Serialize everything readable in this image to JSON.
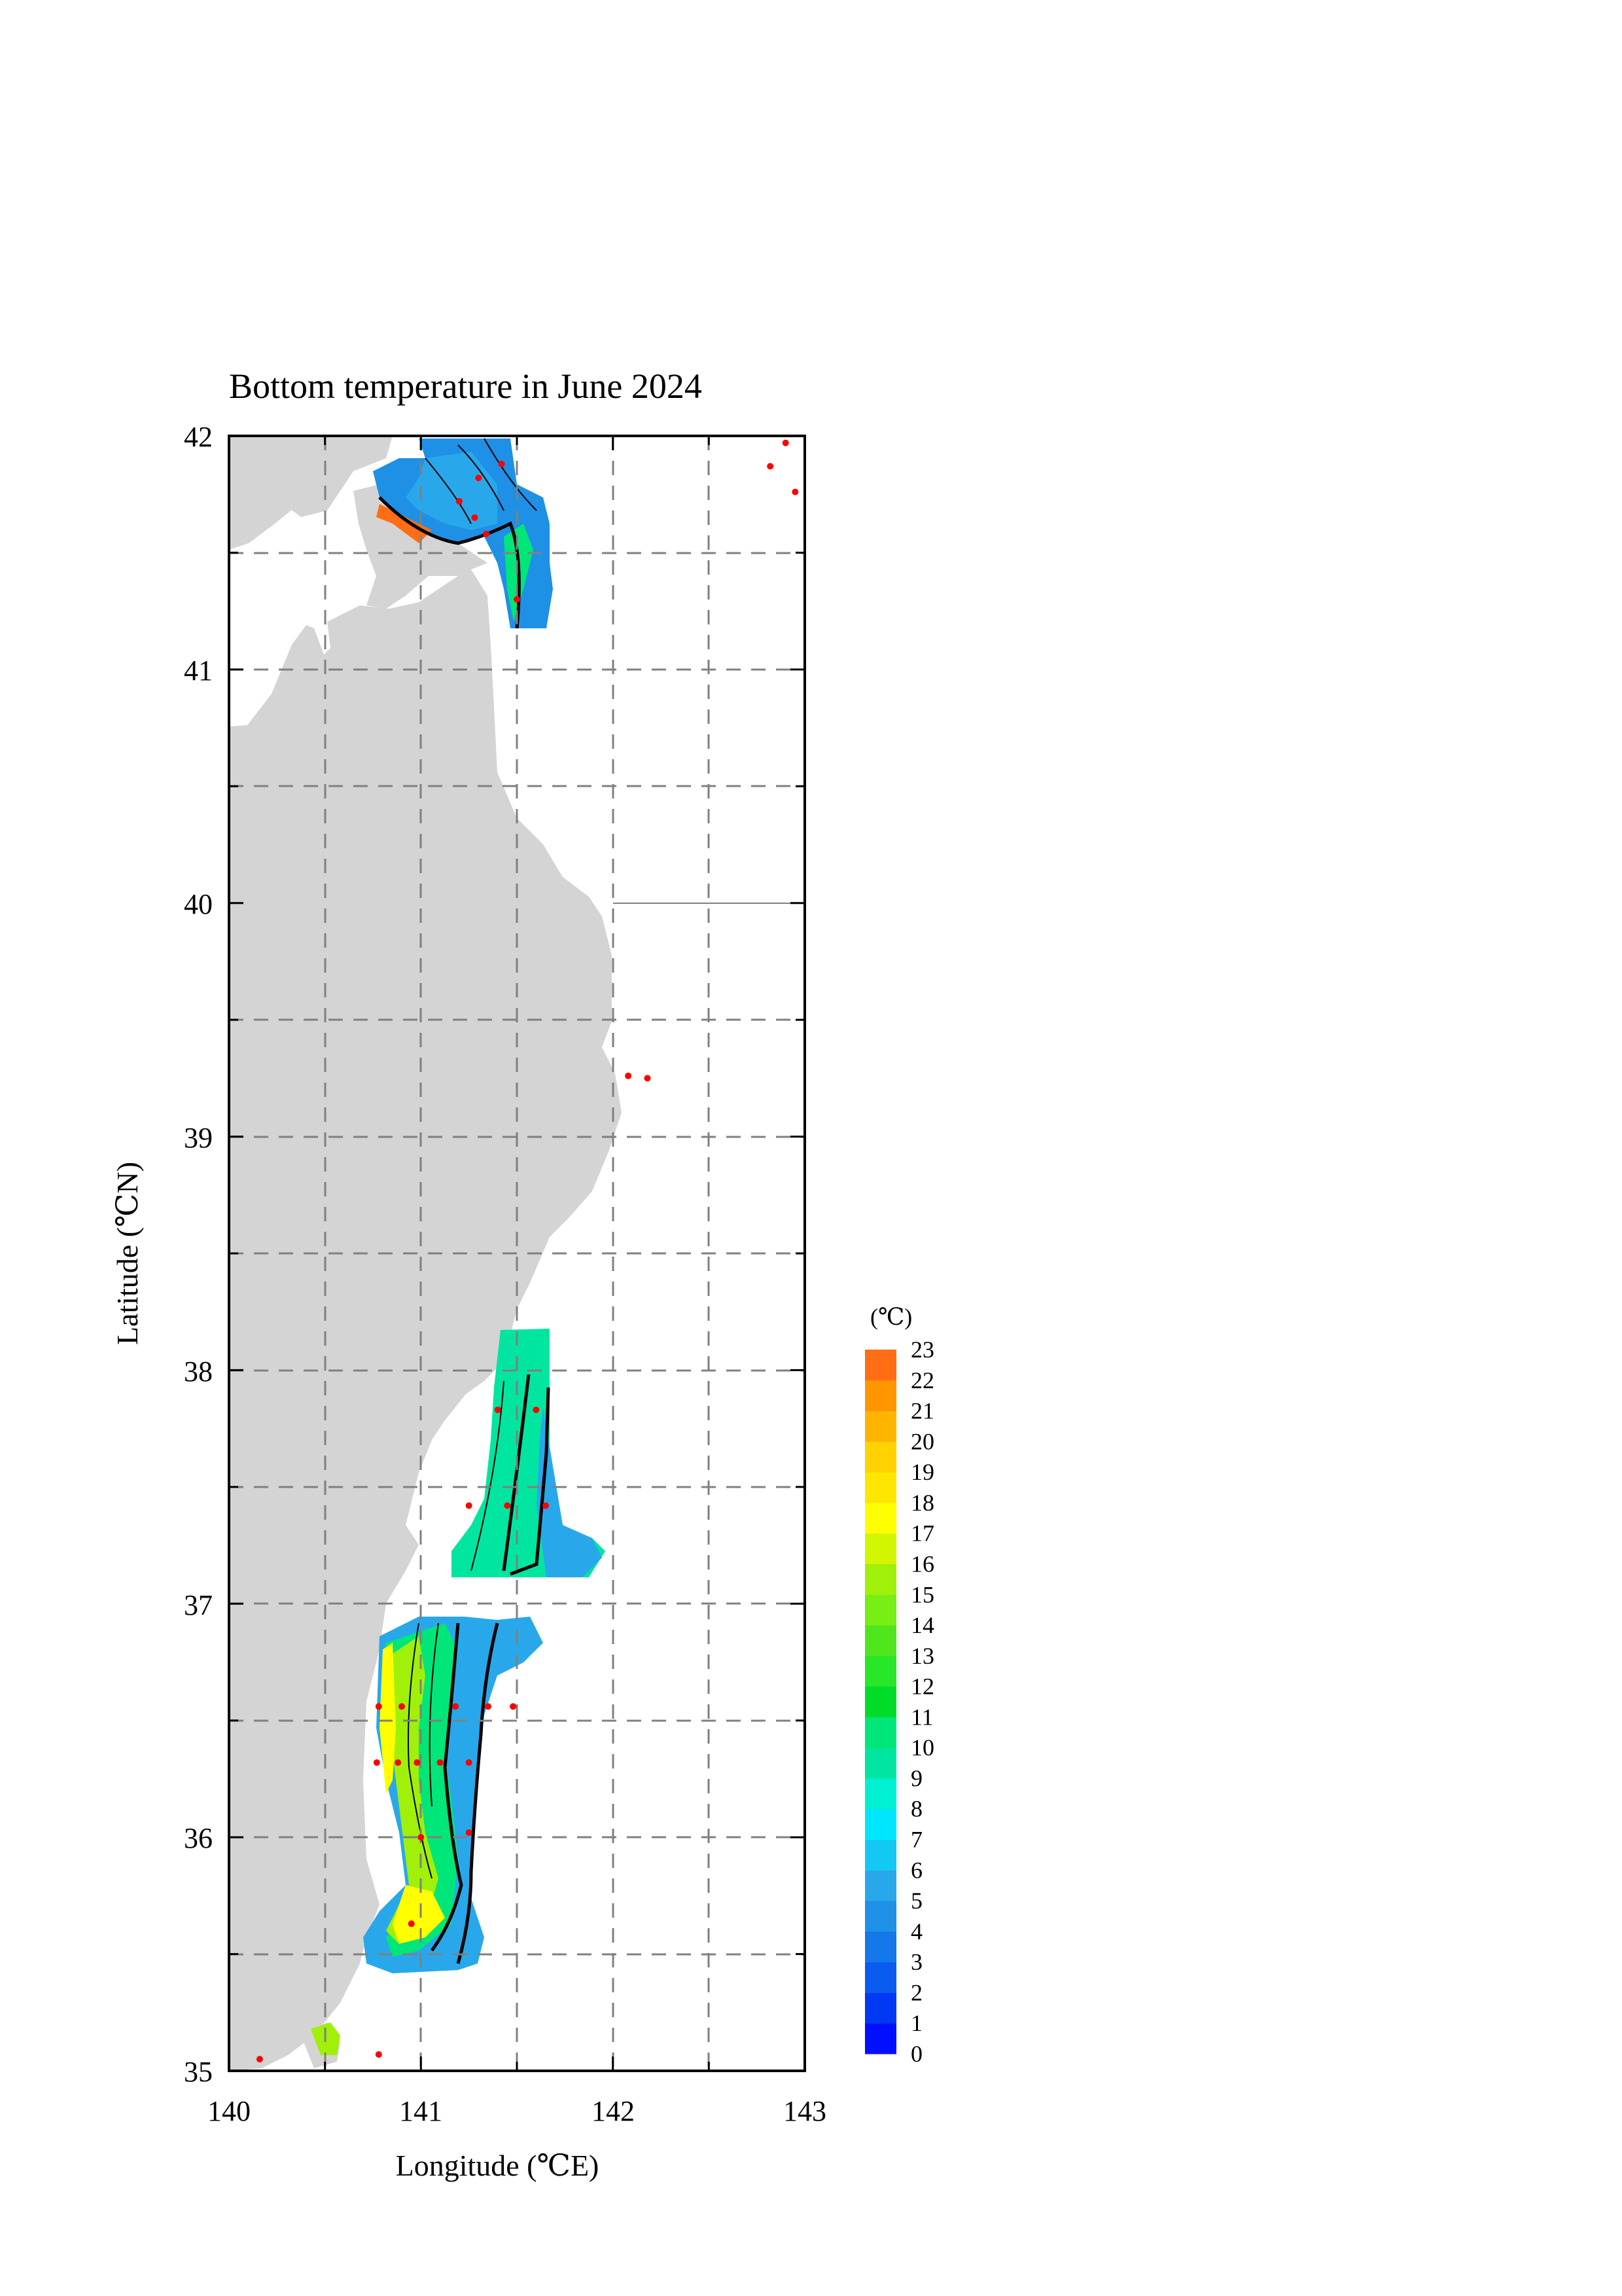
{
  "title": "Bottom temperature in June 2024",
  "x_axis": {
    "label": "Longitude (℃E)",
    "ticks": [
      "140",
      "141",
      "142",
      "143"
    ],
    "range": [
      140,
      143
    ]
  },
  "y_axis": {
    "label": "Latitude (℃N)",
    "ticks": [
      "35",
      "36",
      "37",
      "38",
      "39",
      "40",
      "41",
      "42"
    ],
    "range": [
      35,
      42
    ]
  },
  "colorbar": {
    "unit": "(℃)",
    "labels": [
      "0",
      "1",
      "2",
      "3",
      "4",
      "5",
      "6",
      "7",
      "8",
      "9",
      "10",
      "11",
      "12",
      "13",
      "14",
      "15",
      "16",
      "17",
      "18",
      "19",
      "20",
      "21",
      "22",
      "23"
    ],
    "colors": [
      "#0010ff",
      "#0038f4",
      "#0a5cf0",
      "#1478ea",
      "#1e90e6",
      "#28a8ea",
      "#14c8f4",
      "#00e6ff",
      "#00f0d2",
      "#00e6a0",
      "#00e678",
      "#00dc28",
      "#28e628",
      "#50e61e",
      "#78ee14",
      "#a0f00a",
      "#d2f500",
      "#ffff00",
      "#ffe600",
      "#ffd200",
      "#ffb400",
      "#ff9600",
      "#ff6e14"
    ]
  },
  "colors": {
    "land": "#d4d4d4",
    "grid": "#808080",
    "station": "#ff0000"
  },
  "stations": [
    {
      "lon": 141.3,
      "lat": 41.82
    },
    {
      "lon": 141.42,
      "lat": 41.88
    },
    {
      "lon": 141.2,
      "lat": 41.72
    },
    {
      "lon": 141.28,
      "lat": 41.65
    },
    {
      "lon": 141.34,
      "lat": 41.58
    },
    {
      "lon": 141.5,
      "lat": 41.3
    },
    {
      "lon": 142.82,
      "lat": 41.87
    },
    {
      "lon": 142.9,
      "lat": 41.97
    },
    {
      "lon": 142.95,
      "lat": 41.76
    },
    {
      "lon": 142.08,
      "lat": 39.26
    },
    {
      "lon": 142.18,
      "lat": 39.25
    },
    {
      "lon": 141.4,
      "lat": 37.83
    },
    {
      "lon": 141.6,
      "lat": 37.83
    },
    {
      "lon": 141.25,
      "lat": 37.42
    },
    {
      "lon": 141.45,
      "lat": 37.42
    },
    {
      "lon": 141.65,
      "lat": 37.42
    },
    {
      "lon": 140.78,
      "lat": 36.56
    },
    {
      "lon": 140.9,
      "lat": 36.56
    },
    {
      "lon": 141.18,
      "lat": 36.56
    },
    {
      "lon": 141.35,
      "lat": 36.56
    },
    {
      "lon": 141.48,
      "lat": 36.56
    },
    {
      "lon": 140.77,
      "lat": 36.32
    },
    {
      "lon": 140.88,
      "lat": 36.32
    },
    {
      "lon": 140.98,
      "lat": 36.32
    },
    {
      "lon": 141.1,
      "lat": 36.32
    },
    {
      "lon": 141.25,
      "lat": 36.32
    },
    {
      "lon": 141.0,
      "lat": 36.0
    },
    {
      "lon": 141.25,
      "lat": 36.02
    },
    {
      "lon": 140.95,
      "lat": 35.63
    },
    {
      "lon": 140.78,
      "lat": 35.07
    },
    {
      "lon": 140.16,
      "lat": 35.05
    }
  ]
}
